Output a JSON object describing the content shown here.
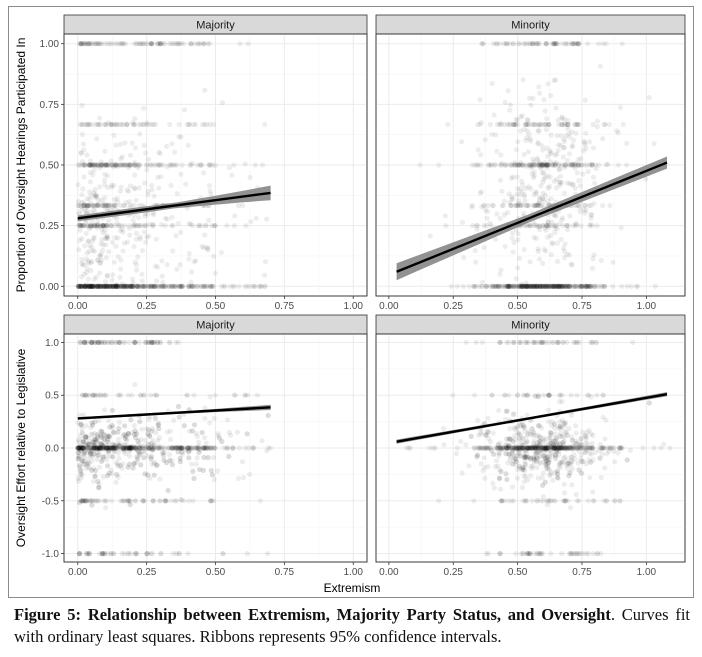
{
  "caption": {
    "label": "Figure 5:",
    "title": "Relationship between Extremism, Majority Party Status, and Oversight",
    "text": ". Curves fit with ordinary least squares. Ribbons represents 95% confidence intervals."
  },
  "colors": {
    "strip_fill": "#d9d9d9",
    "point": "#000000",
    "line": "#000000",
    "ribbon": "#7f7f7f",
    "grid": "#ebebeb"
  },
  "chart_data": [
    {
      "type": "scatter",
      "panel": "Majority",
      "row": 1,
      "xlabel": "",
      "ylabel": "Proportion of Oversight Hearings Participated In",
      "xlim": [
        -0.05,
        1.05
      ],
      "ylim": [
        -0.04,
        1.04
      ],
      "x_ticks": [
        "0.00",
        "0.25",
        "0.50",
        "0.75",
        "1.00"
      ],
      "y_ticks": [
        "0.00",
        "0.25",
        "0.50",
        "0.75",
        "1.00"
      ],
      "x_tick_values": [
        0,
        0.25,
        0.5,
        0.75,
        1
      ],
      "y_tick_values": [
        0,
        0.25,
        0.5,
        0.75,
        1
      ],
      "fit": {
        "x": [
          0.0,
          0.7
        ],
        "y": [
          0.28,
          0.385
        ],
        "ci_halfwidth": [
          0.012,
          0.03
        ]
      },
      "points_summary": {
        "x_range": [
          0.0,
          0.7
        ],
        "mass_x_range": [
          0.0,
          0.5
        ],
        "y_levels": [
          0,
          0.25,
          0.333,
          0.5,
          0.667,
          1
        ],
        "approx_n": 1100
      }
    },
    {
      "type": "scatter",
      "panel": "Minority",
      "row": 1,
      "xlabel": "",
      "ylabel": "",
      "xlim": [
        -0.05,
        1.15
      ],
      "ylim": [
        -0.04,
        1.04
      ],
      "x_ticks": [
        "0.00",
        "0.25",
        "0.50",
        "0.75",
        "1.00"
      ],
      "y_ticks": [],
      "x_tick_values": [
        0,
        0.25,
        0.5,
        0.75,
        1
      ],
      "y_tick_values": [
        0,
        0.25,
        0.5,
        0.75,
        1
      ],
      "fit": {
        "x": [
          0.03,
          1.08
        ],
        "y": [
          0.06,
          0.51
        ],
        "ci_halfwidth": [
          0.035,
          0.025
        ]
      },
      "points_summary": {
        "x_range": [
          0.03,
          1.1
        ],
        "mass_x_range": [
          0.3,
          0.9
        ],
        "y_levels": [
          0,
          0.25,
          0.333,
          0.5,
          0.667,
          1
        ],
        "approx_n": 1000
      }
    },
    {
      "type": "scatter",
      "panel": "Majority",
      "row": 2,
      "xlabel": "Extremism",
      "ylabel": "Oversight Effort relative to Legislative",
      "xlim": [
        -0.05,
        1.05
      ],
      "ylim": [
        -1.08,
        1.08
      ],
      "x_ticks": [
        "0.00",
        "0.25",
        "0.50",
        "0.75",
        "1.00"
      ],
      "y_ticks": [
        "-1.0",
        "-0.5",
        "0.0",
        "0.5",
        "1.0"
      ],
      "x_tick_values": [
        0,
        0.25,
        0.5,
        0.75,
        1
      ],
      "y_tick_values": [
        -1,
        -0.5,
        0,
        0.5,
        1
      ],
      "fit": {
        "x": [
          0.0,
          0.7
        ],
        "y": [
          0.28,
          0.385
        ],
        "ci_halfwidth": [
          0.012,
          0.025
        ]
      },
      "points_summary": {
        "x_range": [
          0.0,
          0.7
        ],
        "mass_x_range": [
          0.0,
          0.45
        ],
        "dense_y": 0,
        "approx_n": 1100
      }
    },
    {
      "type": "scatter",
      "panel": "Minority",
      "row": 2,
      "xlabel": "",
      "ylabel": "",
      "xlim": [
        -0.05,
        1.15
      ],
      "ylim": [
        -1.08,
        1.08
      ],
      "x_ticks": [
        "0.00",
        "0.25",
        "0.50",
        "0.75",
        "1.00"
      ],
      "y_ticks": [],
      "x_tick_values": [
        0,
        0.25,
        0.5,
        0.75,
        1
      ],
      "y_tick_values": [
        -1,
        -0.5,
        0,
        0.5,
        1
      ],
      "fit": {
        "x": [
          0.03,
          1.08
        ],
        "y": [
          0.06,
          0.51
        ],
        "ci_halfwidth": [
          0.02,
          0.02
        ]
      },
      "points_summary": {
        "x_range": [
          0.03,
          1.1
        ],
        "mass_x_range": [
          0.35,
          0.9
        ],
        "dense_y": 0,
        "approx_n": 1000
      }
    }
  ]
}
